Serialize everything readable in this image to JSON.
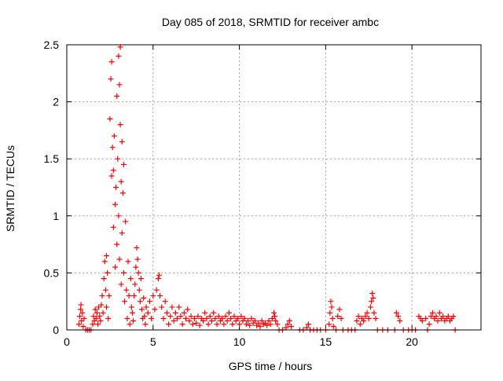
{
  "chart_data": {
    "type": "scatter",
    "title": "Day 085 of 2018, SRMTID for receiver ambc",
    "xlabel": "GPS time / hours",
    "ylabel": "SRMTID / TECUs",
    "xlim": [
      0,
      24
    ],
    "ylim": [
      0,
      2.5
    ],
    "xticks": [
      0,
      5,
      10,
      15,
      20
    ],
    "yticks": [
      0,
      0.5,
      1,
      1.5,
      2,
      2.5
    ],
    "xtick_labels": [
      "0",
      "5",
      "10",
      "15",
      "20"
    ],
    "ytick_labels": [
      "0",
      "0.5",
      "1",
      "1.5",
      "2",
      "2.5"
    ],
    "grid": true,
    "marker": "+",
    "series": [
      {
        "color": "#ff0000",
        "points": [
          [
            0.7,
            0.05
          ],
          [
            0.75,
            0.12
          ],
          [
            0.8,
            0.18
          ],
          [
            0.82,
            0.22
          ],
          [
            0.85,
            0.08
          ],
          [
            0.9,
            0.15
          ],
          [
            0.95,
            0.03
          ],
          [
            1.0,
            0.1
          ],
          [
            1.1,
            0.0
          ],
          [
            1.2,
            0.0
          ],
          [
            1.3,
            0.0
          ],
          [
            1.4,
            0.0
          ],
          [
            1.5,
            0.05
          ],
          [
            1.55,
            0.12
          ],
          [
            1.6,
            0.08
          ],
          [
            1.65,
            0.18
          ],
          [
            1.7,
            0.1
          ],
          [
            1.75,
            0.15
          ],
          [
            1.8,
            0.05
          ],
          [
            1.85,
            0.2
          ],
          [
            1.9,
            0.12
          ],
          [
            1.95,
            0.08
          ],
          [
            2.0,
            0.22
          ],
          [
            2.05,
            0.3
          ],
          [
            2.1,
            0.15
          ],
          [
            2.15,
            0.45
          ],
          [
            2.2,
            0.6
          ],
          [
            2.25,
            0.35
          ],
          [
            2.3,
            0.2
          ],
          [
            2.3,
            0.65
          ],
          [
            2.35,
            0.5
          ],
          [
            2.4,
            0.1
          ],
          [
            2.45,
            0.3
          ],
          [
            2.5,
            1.85
          ],
          [
            2.55,
            2.2
          ],
          [
            2.6,
            2.35
          ],
          [
            2.6,
            1.35
          ],
          [
            2.65,
            1.6
          ],
          [
            2.7,
            1.4
          ],
          [
            2.7,
            0.9
          ],
          [
            2.75,
            1.7
          ],
          [
            2.8,
            1.1
          ],
          [
            2.8,
            0.55
          ],
          [
            2.85,
            1.25
          ],
          [
            2.9,
            0.75
          ],
          [
            2.9,
            2.05
          ],
          [
            2.95,
            1.5
          ],
          [
            3.0,
            2.4
          ],
          [
            3.0,
            1.0
          ],
          [
            3.05,
            2.15
          ],
          [
            3.05,
            0.62
          ],
          [
            3.1,
            2.48
          ],
          [
            3.1,
            1.8
          ],
          [
            3.15,
            1.3
          ],
          [
            3.15,
            0.4
          ],
          [
            3.2,
            1.65
          ],
          [
            3.2,
            0.85
          ],
          [
            3.25,
            1.2
          ],
          [
            3.3,
            0.5
          ],
          [
            3.3,
            1.45
          ],
          [
            3.35,
            0.25
          ],
          [
            3.4,
            0.95
          ],
          [
            3.45,
            0.35
          ],
          [
            3.5,
            0.1
          ],
          [
            3.55,
            0.6
          ],
          [
            3.6,
            0.3
          ],
          [
            3.65,
            0.05
          ],
          [
            3.7,
            0.45
          ],
          [
            3.75,
            0.2
          ],
          [
            3.8,
            0.15
          ],
          [
            3.85,
            0.08
          ],
          [
            3.9,
            0.3
          ],
          [
            3.95,
            0.4
          ],
          [
            4.0,
            0.55
          ],
          [
            4.05,
            0.72
          ],
          [
            4.1,
            0.62
          ],
          [
            4.15,
            0.5
          ],
          [
            4.2,
            0.35
          ],
          [
            4.25,
            0.25
          ],
          [
            4.3,
            0.45
          ],
          [
            4.35,
            0.18
          ],
          [
            4.4,
            0.1
          ],
          [
            4.45,
            0.28
          ],
          [
            4.5,
            0.12
          ],
          [
            4.55,
            0.05
          ],
          [
            4.6,
            0.2
          ],
          [
            4.7,
            0.15
          ],
          [
            4.8,
            0.25
          ],
          [
            4.9,
            0.1
          ],
          [
            5.0,
            0.3
          ],
          [
            5.1,
            0.18
          ],
          [
            5.2,
            0.35
          ],
          [
            5.3,
            0.45
          ],
          [
            5.35,
            0.48
          ],
          [
            5.4,
            0.3
          ],
          [
            5.5,
            0.2
          ],
          [
            5.6,
            0.1
          ],
          [
            5.7,
            0.25
          ],
          [
            5.8,
            0.15
          ],
          [
            5.9,
            0.05
          ],
          [
            6.0,
            0.12
          ],
          [
            6.1,
            0.2
          ],
          [
            6.2,
            0.08
          ],
          [
            6.3,
            0.15
          ],
          [
            6.4,
            0.1
          ],
          [
            6.5,
            0.2
          ],
          [
            6.6,
            0.12
          ],
          [
            6.7,
            0.05
          ],
          [
            6.8,
            0.15
          ],
          [
            6.9,
            0.1
          ],
          [
            7.0,
            0.18
          ],
          [
            7.1,
            0.08
          ],
          [
            7.2,
            0.12
          ],
          [
            7.3,
            0.05
          ],
          [
            7.4,
            0.1
          ],
          [
            7.5,
            0.06
          ],
          [
            7.6,
            0.12
          ],
          [
            7.7,
            0.04
          ],
          [
            7.8,
            0.1
          ],
          [
            7.9,
            0.08
          ],
          [
            8.0,
            0.15
          ],
          [
            8.1,
            0.1
          ],
          [
            8.2,
            0.05
          ],
          [
            8.3,
            0.12
          ],
          [
            8.4,
            0.08
          ],
          [
            8.5,
            0.15
          ],
          [
            8.6,
            0.1
          ],
          [
            8.7,
            0.05
          ],
          [
            8.8,
            0.12
          ],
          [
            8.9,
            0.08
          ],
          [
            9.0,
            0.1
          ],
          [
            9.1,
            0.05
          ],
          [
            9.2,
            0.12
          ],
          [
            9.3,
            0.08
          ],
          [
            9.4,
            0.15
          ],
          [
            9.5,
            0.1
          ],
          [
            9.6,
            0.05
          ],
          [
            9.7,
            0.12
          ],
          [
            9.8,
            0.08
          ],
          [
            9.9,
            0.1
          ],
          [
            10.0,
            0.05
          ],
          [
            10.1,
            0.12
          ],
          [
            10.2,
            0.08
          ],
          [
            10.3,
            0.1
          ],
          [
            10.4,
            0.05
          ],
          [
            10.5,
            0.08
          ],
          [
            10.6,
            0.04
          ],
          [
            10.7,
            0.1
          ],
          [
            10.8,
            0.06
          ],
          [
            10.9,
            0.08
          ],
          [
            11.0,
            0.04
          ],
          [
            11.1,
            0.06
          ],
          [
            11.2,
            0.03
          ],
          [
            11.3,
            0.08
          ],
          [
            11.4,
            0.05
          ],
          [
            11.5,
            0.06
          ],
          [
            11.6,
            0.04
          ],
          [
            11.7,
            0.08
          ],
          [
            11.8,
            0.05
          ],
          [
            11.9,
            0.1
          ],
          [
            12.0,
            0.15
          ],
          [
            12.05,
            0.12
          ],
          [
            12.1,
            0.08
          ],
          [
            12.2,
            0.05
          ],
          [
            12.3,
            0.0
          ],
          [
            12.5,
            0.0
          ],
          [
            12.7,
            0.02
          ],
          [
            12.8,
            0.05
          ],
          [
            12.9,
            0.08
          ],
          [
            13.0,
            0.03
          ],
          [
            13.5,
            0.0
          ],
          [
            13.7,
            0.0
          ],
          [
            13.9,
            0.02
          ],
          [
            14.0,
            0.05
          ],
          [
            14.1,
            0.0
          ],
          [
            14.3,
            0.0
          ],
          [
            14.5,
            0.0
          ],
          [
            14.7,
            0.0
          ],
          [
            15.0,
            0.0
          ],
          [
            15.2,
            0.05
          ],
          [
            15.25,
            0.15
          ],
          [
            15.3,
            0.25
          ],
          [
            15.35,
            0.2
          ],
          [
            15.4,
            0.1
          ],
          [
            15.45,
            0.03
          ],
          [
            15.6,
            0.0
          ],
          [
            15.7,
            0.12
          ],
          [
            15.8,
            0.18
          ],
          [
            15.9,
            0.1
          ],
          [
            16.0,
            0.0
          ],
          [
            16.3,
            0.0
          ],
          [
            16.5,
            0.0
          ],
          [
            16.7,
            0.0
          ],
          [
            16.8,
            0.08
          ],
          [
            16.9,
            0.12
          ],
          [
            17.0,
            0.05
          ],
          [
            17.1,
            0.1
          ],
          [
            17.2,
            0.08
          ],
          [
            17.3,
            0.12
          ],
          [
            17.4,
            0.15
          ],
          [
            17.5,
            0.1
          ],
          [
            17.6,
            0.2
          ],
          [
            17.65,
            0.25
          ],
          [
            17.7,
            0.32
          ],
          [
            17.75,
            0.28
          ],
          [
            17.8,
            0.15
          ],
          [
            17.9,
            0.1
          ],
          [
            18.0,
            0.0
          ],
          [
            18.3,
            0.0
          ],
          [
            18.6,
            0.0
          ],
          [
            19.0,
            0.0
          ],
          [
            19.1,
            0.15
          ],
          [
            19.2,
            0.12
          ],
          [
            19.3,
            0.08
          ],
          [
            19.5,
            0.0
          ],
          [
            19.8,
            0.0
          ],
          [
            20.0,
            0.0
          ],
          [
            20.2,
            0.0
          ],
          [
            20.4,
            0.12
          ],
          [
            20.5,
            0.1
          ],
          [
            20.6,
            0.08
          ],
          [
            20.8,
            0.1
          ],
          [
            20.9,
            0.0
          ],
          [
            21.0,
            0.05
          ],
          [
            21.1,
            0.12
          ],
          [
            21.2,
            0.15
          ],
          [
            21.3,
            0.1
          ],
          [
            21.4,
            0.12
          ],
          [
            21.5,
            0.08
          ],
          [
            21.6,
            0.15
          ],
          [
            21.7,
            0.1
          ],
          [
            21.8,
            0.12
          ],
          [
            21.9,
            0.08
          ],
          [
            22.0,
            0.1
          ],
          [
            22.1,
            0.12
          ],
          [
            22.2,
            0.08
          ],
          [
            22.3,
            0.1
          ],
          [
            22.4,
            0.12
          ],
          [
            22.5,
            0.0
          ]
        ]
      }
    ]
  }
}
